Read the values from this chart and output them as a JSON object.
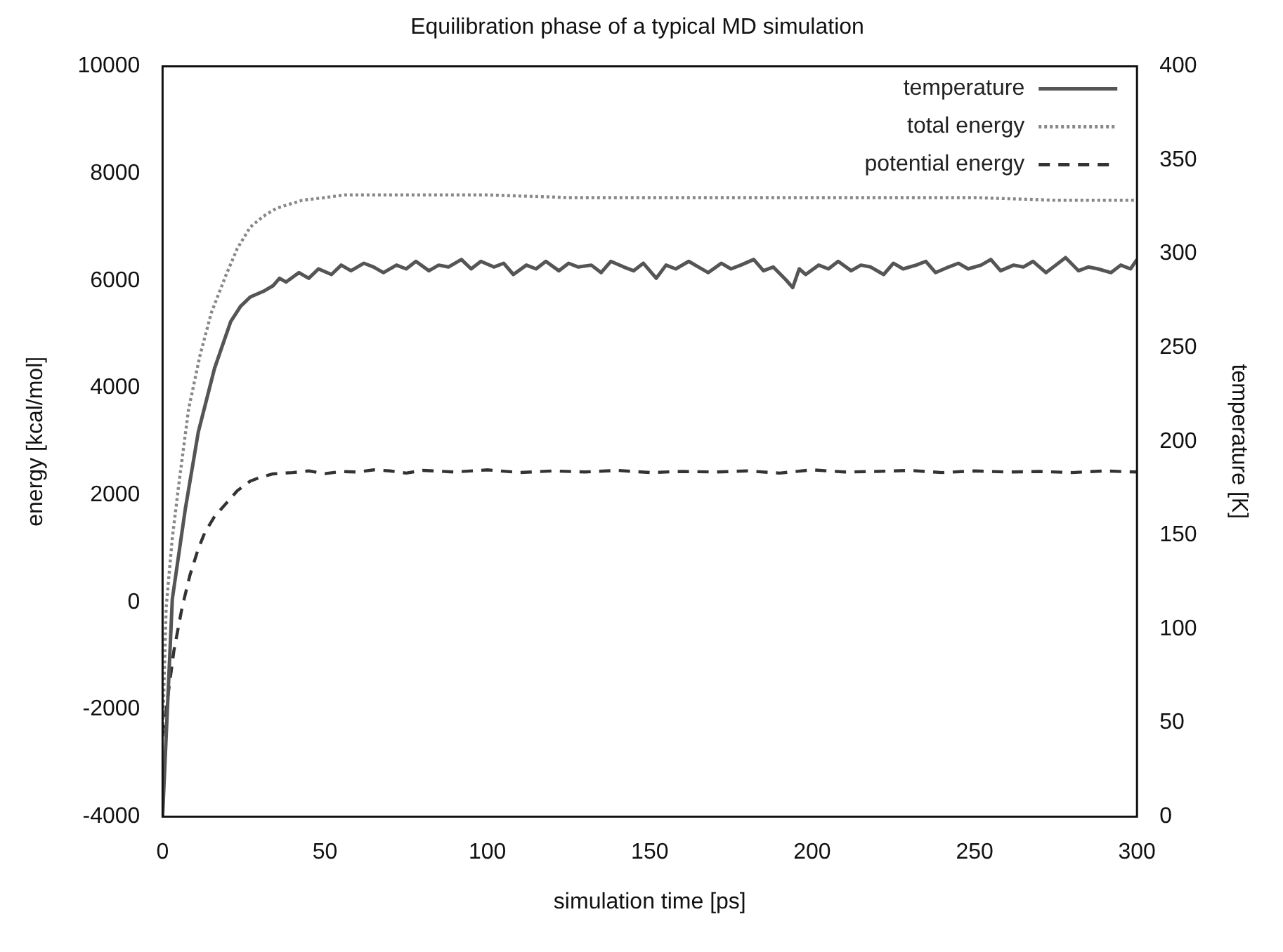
{
  "chart_data": {
    "type": "line",
    "title": "Equilibration phase of a typical MD simulation",
    "xlabel": "simulation time [ps]",
    "ylabel": "energy [kcal/mol]",
    "y2label": "temperature [K]",
    "xlim": [
      0,
      300
    ],
    "xticks": [
      0,
      50,
      100,
      150,
      200,
      250,
      300
    ],
    "ylim": [
      -4000,
      10000
    ],
    "yticks": [
      -4000,
      -2000,
      0,
      2000,
      4000,
      6000,
      8000,
      10000
    ],
    "y2lim": [
      0,
      400
    ],
    "y2ticks": [
      0,
      50,
      100,
      150,
      200,
      250,
      300,
      350,
      400
    ],
    "grid": false,
    "legend": "top right",
    "marker": "none",
    "series": [
      {
        "name": "temperature",
        "color": "#555555",
        "line_style": "solid",
        "axis": "y2",
        "x": [
          0,
          3,
          7,
          11,
          16,
          21,
          24,
          27,
          31,
          34,
          36,
          38,
          42,
          45,
          48,
          52,
          55,
          58,
          62,
          65,
          68,
          72,
          75,
          78,
          82,
          85,
          88,
          92,
          95,
          98,
          102,
          105,
          108,
          112,
          115,
          118,
          122,
          125,
          128,
          132,
          135,
          138,
          142,
          145,
          148,
          152,
          155,
          158,
          162,
          165,
          168,
          172,
          175,
          178,
          182,
          185,
          188,
          192,
          194,
          196,
          198,
          202,
          205,
          208,
          212,
          215,
          218,
          222,
          225,
          228,
          232,
          235,
          238,
          242,
          245,
          248,
          252,
          255,
          258,
          262,
          265,
          268,
          272,
          275,
          278,
          282,
          285,
          288,
          292,
          295,
          298,
          300
        ],
        "values": [
          0,
          116,
          164,
          205,
          239,
          264,
          272,
          277,
          280,
          283,
          287,
          285,
          290,
          287,
          292,
          289,
          294,
          291,
          295,
          293,
          290,
          294,
          292,
          296,
          291,
          294,
          293,
          297,
          292,
          296,
          293,
          295,
          289,
          294,
          292,
          296,
          291,
          295,
          293,
          294,
          290,
          296,
          293,
          291,
          295,
          287,
          294,
          292,
          296,
          293,
          290,
          295,
          292,
          294,
          297,
          291,
          293,
          286,
          282,
          292,
          289,
          294,
          292,
          296,
          291,
          294,
          293,
          289,
          295,
          292,
          294,
          296,
          290,
          293,
          295,
          292,
          294,
          297,
          291,
          294,
          293,
          296,
          290,
          294,
          298,
          291,
          293,
          292,
          290,
          294,
          292,
          297
        ]
      },
      {
        "name": "total energy",
        "color": "#888888",
        "line_style": "dotted",
        "x": [
          0,
          1.1,
          3,
          5,
          8,
          11.5,
          15,
          19.5,
          23,
          27,
          31,
          35,
          43,
          50,
          56,
          65,
          80,
          100,
          125,
          150,
          175,
          200,
          225,
          250,
          275,
          300
        ],
        "values": [
          -2500,
          -100,
          1200,
          2200,
          3600,
          4600,
          5400,
          6100,
          6600,
          7000,
          7200,
          7350,
          7500,
          7550,
          7600,
          7600,
          7600,
          7600,
          7550,
          7550,
          7550,
          7550,
          7550,
          7550,
          7500,
          7500
        ]
      },
      {
        "name": "potential energy",
        "color": "#333333",
        "line_style": "dashed",
        "x": [
          0,
          3.5,
          6,
          8.4,
          11,
          13,
          16,
          19.5,
          23,
          27,
          30,
          34,
          40,
          45,
          50,
          55,
          60,
          65,
          70,
          75,
          80,
          90,
          100,
          110,
          120,
          130,
          140,
          150,
          160,
          170,
          180,
          190,
          200,
          210,
          220,
          230,
          240,
          250,
          260,
          270,
          280,
          290,
          300
        ],
        "values": [
          -2500,
          -900,
          -100,
          500,
          1000,
          1300,
          1600,
          1840,
          2080,
          2260,
          2330,
          2395,
          2420,
          2450,
          2400,
          2440,
          2430,
          2470,
          2450,
          2410,
          2460,
          2430,
          2470,
          2420,
          2450,
          2430,
          2460,
          2420,
          2440,
          2430,
          2450,
          2410,
          2470,
          2430,
          2440,
          2460,
          2420,
          2450,
          2430,
          2440,
          2420,
          2450,
          2430
        ]
      }
    ]
  }
}
